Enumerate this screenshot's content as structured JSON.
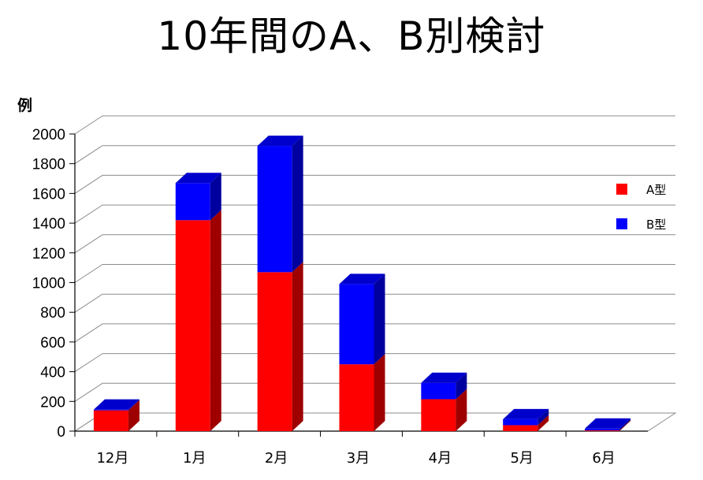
{
  "chart_data": {
    "type": "bar",
    "stacked": true,
    "title": "10年間のA、B別検討",
    "ylabel": "例",
    "xlabel": "",
    "ylim": [
      0,
      2000
    ],
    "yticks": [
      "0",
      "200",
      "400",
      "600",
      "800",
      "1000",
      "1200",
      "1400",
      "1600",
      "1800",
      "2000"
    ],
    "categories": [
      "12月",
      "1月",
      "2月",
      "3月",
      "4月",
      "5月",
      "6月"
    ],
    "series": [
      {
        "name": "A型",
        "color": "#ff0000",
        "values": [
          140,
          1420,
          1070,
          450,
          215,
          40,
          5
        ]
      },
      {
        "name": "B型",
        "color": "#0000ff",
        "values": [
          5,
          250,
          850,
          540,
          110,
          40,
          12
        ]
      }
    ],
    "grid": true,
    "legend": "right"
  }
}
